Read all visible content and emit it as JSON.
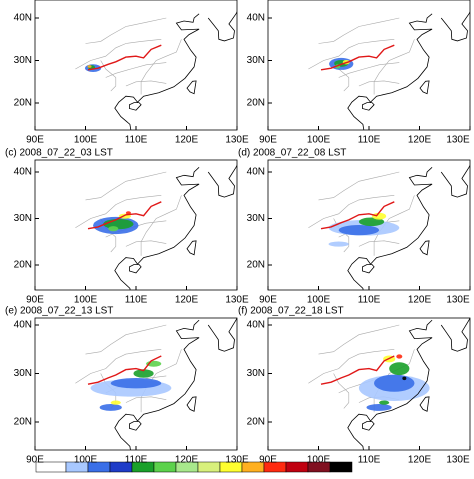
{
  "lat_labels": [
    "40N",
    "30N",
    "20N"
  ],
  "lon_labels": [
    "90E",
    "100E",
    "110E",
    "120E",
    "130E"
  ],
  "panel_titles": [
    "(c) 2008_07_22_03 LST",
    "(d) 2008_07_22_08 LST",
    "(e) 2008_07_22_13 LST",
    "(f) 2008_07_22_18 LST"
  ]
}
